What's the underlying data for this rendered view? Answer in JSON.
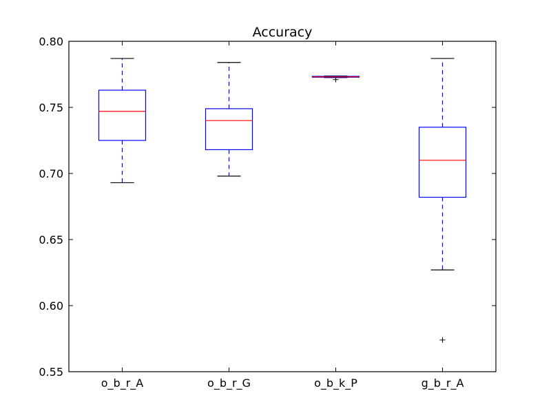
{
  "chart_data": {
    "type": "box",
    "title": "Accuracy",
    "xlabel": "",
    "ylabel": "",
    "ylim": [
      0.55,
      0.8
    ],
    "yticks": [
      "0.55",
      "0.60",
      "0.65",
      "0.70",
      "0.75",
      "0.80"
    ],
    "grid": false,
    "categories": [
      "o_b_r_A",
      "o_b_r_G",
      "o_b_k_P",
      "g_b_r_A"
    ],
    "boxes": [
      {
        "whisker_low": 0.693,
        "q1": 0.725,
        "median": 0.747,
        "q3": 0.763,
        "whisker_high": 0.787,
        "outliers": []
      },
      {
        "whisker_low": 0.698,
        "q1": 0.718,
        "median": 0.74,
        "q3": 0.749,
        "whisker_high": 0.784,
        "outliers": []
      },
      {
        "whisker_low": 0.7725,
        "q1": 0.7728,
        "median": 0.7731,
        "q3": 0.7735,
        "whisker_high": 0.7738,
        "outliers": [
          0.771
        ]
      },
      {
        "whisker_low": 0.627,
        "q1": 0.682,
        "median": 0.71,
        "q3": 0.735,
        "whisker_high": 0.787,
        "outliers": [
          0.574
        ]
      }
    ],
    "colors": {
      "box": "#0000ff",
      "median": "#ff0000",
      "whisker": "#0000ff",
      "cap": "#000000",
      "outlier": "#000000",
      "axes": "#000000"
    }
  }
}
